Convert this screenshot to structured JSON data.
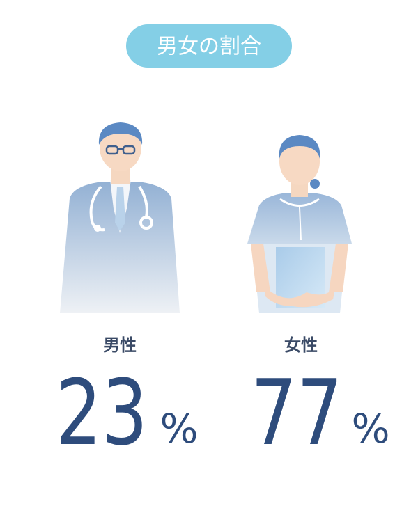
{
  "header": {
    "title": "男女の割合"
  },
  "items": [
    {
      "label": "男性",
      "value": 23,
      "unit": "%"
    },
    {
      "label": "女性",
      "value": 77,
      "unit": "%"
    }
  ]
}
